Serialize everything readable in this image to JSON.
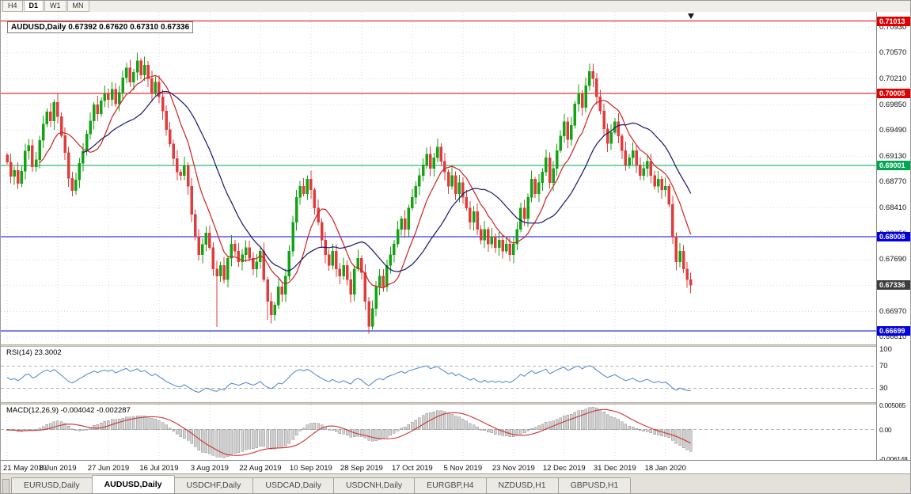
{
  "toolbar": {
    "timeframes": [
      "H4",
      "D1",
      "W1",
      "MN"
    ],
    "active_index": 1
  },
  "chart": {
    "title": "AUDUSD,Daily 0.67392 0.67620 0.67310 0.67336",
    "ohlc": {
      "symbol": "AUDUSD,Daily",
      "open": "0.67392",
      "high": "0.67620",
      "low": "0.67310",
      "close": "0.67336"
    },
    "y_axis": {
      "ticks": [
        {
          "v": 0.7093,
          "t": "0.70930"
        },
        {
          "v": 0.7057,
          "t": "0.70570"
        },
        {
          "v": 0.7021,
          "t": "0.70210"
        },
        {
          "v": 0.6985,
          "t": "0.69850"
        },
        {
          "v": 0.6949,
          "t": "0.69490"
        },
        {
          "v": 0.6913,
          "t": "0.69130"
        },
        {
          "v": 0.6877,
          "t": "0.68770"
        },
        {
          "v": 0.6841,
          "t": "0.68410"
        },
        {
          "v": 0.6805,
          "t": "0.68050"
        },
        {
          "v": 0.6769,
          "t": "0.67690"
        },
        {
          "v": 0.6733,
          "t": "0.67330"
        },
        {
          "v": 0.6697,
          "t": "0.66970"
        },
        {
          "v": 0.6661,
          "t": "0.66610"
        }
      ]
    },
    "x_axis": {
      "labels": [
        {
          "i": 0,
          "t": "21 May 2019"
        },
        {
          "i": 14,
          "t": "8 Jun 2019"
        },
        {
          "i": 28,
          "t": "27 Jun 2019"
        },
        {
          "i": 42,
          "t": "16 Jul 2019"
        },
        {
          "i": 56,
          "t": "3 Aug 2019"
        },
        {
          "i": 70,
          "t": "22 Aug 2019"
        },
        {
          "i": 84,
          "t": "10 Sep 2019"
        },
        {
          "i": 98,
          "t": "28 Sep 2019"
        },
        {
          "i": 112,
          "t": "17 Oct 2019"
        },
        {
          "i": 126,
          "t": "5 Nov 2019"
        },
        {
          "i": 140,
          "t": "23 Nov 2019"
        },
        {
          "i": 154,
          "t": "12 Dec 2019"
        },
        {
          "i": 168,
          "t": "31 Dec 2019"
        },
        {
          "i": 182,
          "t": "18 Jan 2020"
        }
      ]
    },
    "levels": [
      {
        "price": 0.71013,
        "label": "0.71013",
        "color": "#e10000"
      },
      {
        "price": 0.70005,
        "label": "0.70005",
        "color": "#e10000"
      },
      {
        "price": 0.69001,
        "label": "0.69001",
        "color": "#00a651"
      },
      {
        "price": 0.68008,
        "label": "0.68008",
        "color": "#0000e0"
      },
      {
        "price": 0.66699,
        "label": "0.66699",
        "color": "#0000e0"
      }
    ],
    "current": {
      "value": 0.67336,
      "label": "0.67336",
      "color": "#3d3d3d"
    },
    "colors": {
      "up": "#13a313",
      "down": "#e23b3b",
      "ma_fast": "#cc2222",
      "ma_slow": "#16166b",
      "grid": "#dcdcdc",
      "rsi_line": "#4a86c8",
      "rsi_level": "#b4b4b4",
      "macd_bar": "#d2d2d2",
      "macd_bar_edge": "#8f8f8f",
      "macd_signal": "#cc3333"
    }
  },
  "chart_data": {
    "type": "candlestick",
    "symbol": "AUDUSD",
    "timeframe": "Daily",
    "first_open": 0.6915,
    "closes": [
      0.6905,
      0.6885,
      0.6893,
      0.6875,
      0.6892,
      0.692,
      0.6928,
      0.6898,
      0.6908,
      0.6935,
      0.6958,
      0.6975,
      0.6962,
      0.6988,
      0.6968,
      0.6942,
      0.6918,
      0.6882,
      0.6865,
      0.688,
      0.6903,
      0.692,
      0.6944,
      0.6962,
      0.6985,
      0.6972,
      0.699,
      0.7,
      0.6992,
      0.7006,
      0.6986,
      0.7002,
      0.7022,
      0.7036,
      0.7016,
      0.703,
      0.7046,
      0.7026,
      0.704,
      0.7021,
      0.7001,
      0.7016,
      0.6996,
      0.6976,
      0.695,
      0.693,
      0.691,
      0.6891,
      0.6886,
      0.69,
      0.6871,
      0.6832,
      0.6801,
      0.6776,
      0.679,
      0.6806,
      0.6786,
      0.6756,
      0.6746,
      0.6761,
      0.6741,
      0.6771,
      0.6791,
      0.6781,
      0.6766,
      0.6776,
      0.6786,
      0.6771,
      0.6756,
      0.6766,
      0.6781,
      0.6741,
      0.6711,
      0.6692,
      0.6706,
      0.6731,
      0.6721,
      0.6746,
      0.6781,
      0.6821,
      0.6856,
      0.6871,
      0.6861,
      0.6881,
      0.6866,
      0.6841,
      0.6821,
      0.6796,
      0.6776,
      0.6761,
      0.6781,
      0.6756,
      0.6746,
      0.6761,
      0.6741,
      0.6721,
      0.6756,
      0.6771,
      0.6751,
      0.6711,
      0.6676,
      0.6701,
      0.6731,
      0.6746,
      0.6731,
      0.6761,
      0.6776,
      0.6791,
      0.6811,
      0.6826,
      0.6811,
      0.6841,
      0.6856,
      0.6871,
      0.6886,
      0.6901,
      0.6916,
      0.6896,
      0.6911,
      0.6926,
      0.6906,
      0.6891,
      0.6871,
      0.6886,
      0.6861,
      0.6876,
      0.6856,
      0.6841,
      0.6821,
      0.6836,
      0.6811,
      0.6796,
      0.6811,
      0.6791,
      0.6801,
      0.6786,
      0.6796,
      0.6781,
      0.6791,
      0.6776,
      0.6791,
      0.6811,
      0.6841,
      0.6826,
      0.6856,
      0.6881,
      0.6861,
      0.6876,
      0.6891,
      0.6911,
      0.6876,
      0.6896,
      0.6921,
      0.6941,
      0.6961,
      0.6936,
      0.6956,
      0.6986,
      0.7001,
      0.6981,
      0.7011,
      0.7031,
      0.7021,
      0.6996,
      0.6976,
      0.6951,
      0.6931,
      0.6946,
      0.6961,
      0.6941,
      0.6921,
      0.6901,
      0.6911,
      0.6921,
      0.6901,
      0.6886,
      0.6896,
      0.6906,
      0.6886,
      0.6871,
      0.6881,
      0.6866,
      0.6871,
      0.6846,
      0.6801,
      0.6766,
      0.6781,
      0.6756,
      0.6741,
      0.67336
    ],
    "high_overrides": {
      "36": 0.7057,
      "161": 0.7042
    },
    "low_overrides": {
      "58": 0.6675,
      "72": 0.6685,
      "100": 0.6666
    },
    "ma_fast_period": 10,
    "ma_slow_period": 22
  },
  "rsi": {
    "label": "RSI(14) 23.3002",
    "period": 14,
    "ticks": [
      {
        "v": 100,
        "t": "100"
      },
      {
        "v": 70,
        "t": "70"
      },
      {
        "v": 30,
        "t": "30"
      }
    ],
    "dashed_levels": [
      70,
      30
    ]
  },
  "macd": {
    "label": "MACD(12,26,9) -0.004042 -0.002287",
    "fast": 12,
    "slow": 26,
    "signal": 9,
    "ticks": [
      {
        "v": 0.005065,
        "t": "0.005065"
      },
      {
        "v": 0,
        "t": "0.00"
      },
      {
        "v": -0.006148,
        "t": "-0.006148"
      }
    ]
  },
  "tabs": {
    "items": [
      "EURUSD,Daily",
      "AUDUSD,Daily",
      "USDCHF,Daily",
      "USDCAD,Daily",
      "USDCNH,Daily",
      "EURGBP,H4",
      "NZDUSD,H1",
      "GBPUSD,H1"
    ],
    "active_index": 1
  }
}
